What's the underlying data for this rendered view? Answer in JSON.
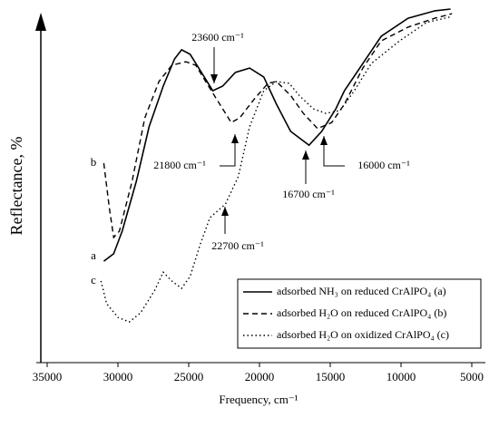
{
  "chart_data": {
    "type": "line",
    "x_label": "Frequency, cm⁻¹",
    "y_label": "Reflectance, %",
    "xlim": [
      35000,
      5000
    ],
    "xticks": [
      35000,
      30000,
      25000,
      20000,
      15000,
      10000,
      5000
    ],
    "ylim": [
      0,
      100
    ],
    "curve_labels": [
      "a",
      "b",
      "c"
    ],
    "annotations": [
      "23600 cm⁻¹",
      "21800 cm⁻¹",
      "16700 cm⁻¹",
      "16000 cm⁻¹",
      "22700 cm⁻¹"
    ],
    "series": [
      {
        "name": "adsorbed NH₃ on reduced CrAlPO₄ (a)",
        "color": "#000000",
        "dash": "solid",
        "x": [
          31000,
          30300,
          29700,
          28700,
          27800,
          26800,
          26000,
          25500,
          24900,
          24100,
          23300,
          22600,
          21700,
          20700,
          19700,
          18800,
          17800,
          16500,
          15600,
          14600,
          14000,
          12700,
          11400,
          9500,
          7600,
          6500
        ],
        "values": [
          28.7,
          30.8,
          37.2,
          51.3,
          66.7,
          78.2,
          85.9,
          88.5,
          87.2,
          82.1,
          76.9,
          78.2,
          82.1,
          83.3,
          80.8,
          73.1,
          65.4,
          61.5,
          65.4,
          71.8,
          76.9,
          84.6,
          92.3,
          97.4,
          99.5,
          100
        ]
      },
      {
        "name": "adsorbed H₂O on reduced CrAlPO₄ (b)",
        "color": "#000000",
        "dash": "dashed",
        "x": [
          31000,
          30600,
          30300,
          29900,
          29000,
          28100,
          27100,
          26200,
          25200,
          24500,
          23600,
          22600,
          22000,
          21400,
          20400,
          19400,
          18800,
          17800,
          16900,
          15900,
          14900,
          14000,
          12700,
          11400,
          9500,
          7600,
          6400
        ],
        "values": [
          56.4,
          43.6,
          35.4,
          37.2,
          51.3,
          69.2,
          79.5,
          84.1,
          85.1,
          84.1,
          78.2,
          71.8,
          67.9,
          69.2,
          74.4,
          79,
          79.5,
          75.6,
          70.5,
          66.2,
          67.9,
          73.1,
          83.3,
          91,
          94.9,
          97.4,
          98.7
        ]
      },
      {
        "name": "adsorbed H₂O on oxidized CrAlPO₄ (c)",
        "color": "#000000",
        "dash": "dotted",
        "x": [
          31200,
          30800,
          30000,
          29200,
          28400,
          27400,
          26800,
          26200,
          25500,
          24900,
          24200,
          23500,
          22400,
          21500,
          20700,
          19700,
          18800,
          17900,
          17200,
          16200,
          15300,
          14300,
          13300,
          12100,
          10100,
          8200,
          6400
        ],
        "values": [
          23.1,
          16.7,
          12.8,
          11.5,
          14.1,
          20.5,
          25.6,
          23.1,
          21,
          24.4,
          33.3,
          41,
          44.9,
          52.6,
          66.7,
          76.9,
          79.5,
          79,
          75.6,
          71.8,
          70.5,
          71.3,
          76.9,
          84.6,
          91,
          96.2,
          97.9
        ]
      }
    ]
  }
}
